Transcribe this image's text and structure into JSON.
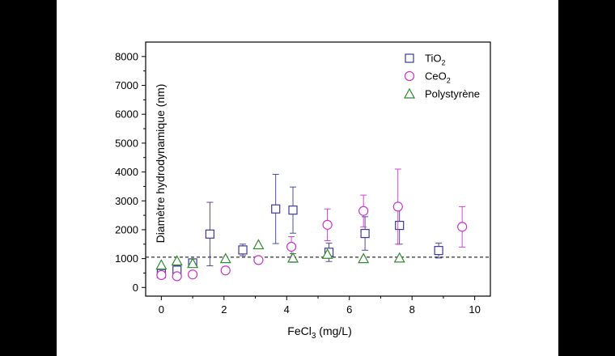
{
  "colors": {
    "background": "#000000",
    "panel": "#ffffff",
    "tio2": "#3a3a9a",
    "ceo2": "#cc33cc",
    "polystyrene": "#2e8b2e",
    "axis": "#000000"
  },
  "chart_data": {
    "type": "scatter",
    "xlabel": {
      "main": "FeCl",
      "sub": "3",
      "unit": " (mg/L)"
    },
    "ylabel": "Diamètre hydrodynamique (nm)",
    "xlim": [
      -0.5,
      10.5
    ],
    "ylim": [
      -300,
      8500
    ],
    "xticks": [
      0,
      2,
      4,
      6,
      8,
      10
    ],
    "yticks": [
      0,
      1000,
      2000,
      3000,
      4000,
      5000,
      6000,
      7000,
      8000
    ],
    "grid": false,
    "legend_position": "top-right",
    "reference_line": {
      "y": 1050,
      "style": "dashed"
    },
    "series": [
      {
        "name": "TiO",
        "name_sub": "2",
        "marker": "square",
        "color": "#3a3a9a",
        "points": [
          {
            "x": 0.0,
            "y": 480,
            "err": 100
          },
          {
            "x": 0.5,
            "y": 600,
            "err": 150
          },
          {
            "x": 1.0,
            "y": 850,
            "err": 120
          },
          {
            "x": 1.55,
            "y": 1850,
            "err": 1100
          },
          {
            "x": 2.6,
            "y": 1300,
            "err": 200
          },
          {
            "x": 3.65,
            "y": 2720,
            "err": 1200
          },
          {
            "x": 4.2,
            "y": 2680,
            "err": 800
          },
          {
            "x": 5.35,
            "y": 1220,
            "err": 320
          },
          {
            "x": 6.5,
            "y": 1870,
            "err": 580
          },
          {
            "x": 7.6,
            "y": 2150,
            "err": 650
          },
          {
            "x": 8.85,
            "y": 1280,
            "err": 260
          }
        ]
      },
      {
        "name": "CeO",
        "name_sub": "2",
        "marker": "circle",
        "color": "#cc33cc",
        "points": [
          {
            "x": 0.0,
            "y": 430,
            "err": 60
          },
          {
            "x": 0.5,
            "y": 390,
            "err": 60
          },
          {
            "x": 1.0,
            "y": 450,
            "err": 60
          },
          {
            "x": 2.05,
            "y": 590,
            "err": 80
          },
          {
            "x": 3.1,
            "y": 950,
            "err": 40
          },
          {
            "x": 4.15,
            "y": 1410,
            "err": 350
          },
          {
            "x": 5.3,
            "y": 2170,
            "err": 550
          },
          {
            "x": 6.45,
            "y": 2650,
            "err": 550
          },
          {
            "x": 7.55,
            "y": 2800,
            "err": 1300
          },
          {
            "x": 9.6,
            "y": 2100,
            "err": 700
          }
        ]
      },
      {
        "name": "Polystyrène",
        "marker": "triangle",
        "color": "#2e8b2e",
        "points": [
          {
            "x": 0.0,
            "y": 780,
            "err": 0
          },
          {
            "x": 0.5,
            "y": 920,
            "err": 0
          },
          {
            "x": 1.0,
            "y": 830,
            "err": 0
          },
          {
            "x": 2.05,
            "y": 1000,
            "err": 0
          },
          {
            "x": 3.1,
            "y": 1480,
            "err": 0
          },
          {
            "x": 4.2,
            "y": 1020,
            "err": 150
          },
          {
            "x": 5.3,
            "y": 1150,
            "err": 0
          },
          {
            "x": 6.45,
            "y": 1000,
            "err": 0
          },
          {
            "x": 7.6,
            "y": 1020,
            "err": 0
          }
        ]
      }
    ]
  }
}
